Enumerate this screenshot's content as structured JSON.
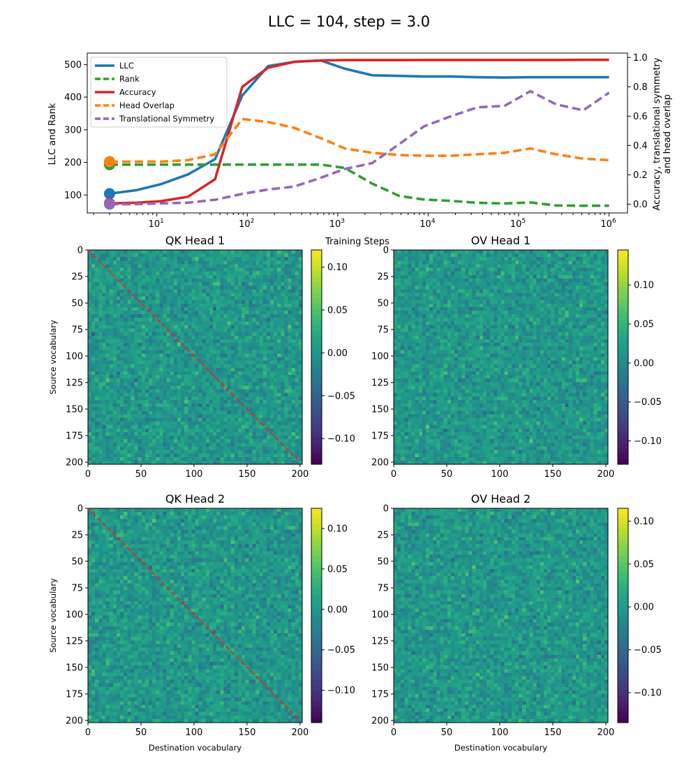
{
  "figure": {
    "suptitle": "LLC = 104, step = 3.0"
  },
  "chart_data": [
    {
      "type": "line",
      "xscale": "log",
      "xlabel": "Training Steps",
      "ylabel_left": "LLC and Rank",
      "ylabel_right_line1": "Accuracy, translational symmetry",
      "ylabel_right_line2": "and head overlap",
      "xlim": [
        1.7,
        1600000
      ],
      "ylim_left": [
        45,
        535
      ],
      "ylim_right": [
        -0.06,
        1.03
      ],
      "xticks": [
        {
          "value": 10,
          "base": "10",
          "exp": "1"
        },
        {
          "value": 100,
          "base": "10",
          "exp": "2"
        },
        {
          "value": 1000,
          "base": "10",
          "exp": "3"
        },
        {
          "value": 10000,
          "base": "10",
          "exp": "4"
        },
        {
          "value": 100000,
          "base": "10",
          "exp": "5"
        },
        {
          "value": 1000000,
          "base": "10",
          "exp": "6"
        }
      ],
      "yticks_left": [
        100,
        200,
        300,
        400,
        500
      ],
      "yticks_right": [
        0.0,
        0.2,
        0.4,
        0.6,
        0.8,
        1.0
      ],
      "legend_position": "upper-left",
      "x": [
        3,
        6,
        11,
        22,
        44,
        88,
        170,
        330,
        650,
        1200,
        2400,
        4800,
        9000,
        18000,
        35000,
        70000,
        135000,
        260000,
        520000,
        1000000
      ],
      "series": [
        {
          "name": "LLC",
          "axis": "left",
          "color": "#1f77b4",
          "dash": "solid",
          "values": [
            104,
            115,
            133,
            163,
            210,
            405,
            495,
            508,
            512,
            487,
            467,
            465,
            463,
            463,
            461,
            460,
            461,
            461,
            461,
            461
          ]
        },
        {
          "name": "Rank",
          "axis": "left",
          "color": "#2ca02c",
          "dash": "dashed",
          "values": [
            193,
            193,
            193,
            193,
            193,
            193,
            193,
            193,
            193,
            183,
            135,
            97,
            86,
            82,
            76,
            74,
            77,
            68,
            67,
            67
          ]
        },
        {
          "name": "Accuracy",
          "axis": "right",
          "color": "#d62728",
          "dash": "solid",
          "values": [
            0.005,
            0.01,
            0.02,
            0.05,
            0.17,
            0.8,
            0.93,
            0.97,
            0.98,
            0.982,
            0.982,
            0.982,
            0.983,
            0.983,
            0.983,
            0.983,
            0.983,
            0.983,
            0.984,
            0.984
          ]
        },
        {
          "name": "Head Overlap",
          "axis": "right",
          "color": "#ff7f0e",
          "dash": "dashed",
          "values": [
            0.29,
            0.29,
            0.29,
            0.3,
            0.34,
            0.58,
            0.56,
            0.52,
            0.45,
            0.38,
            0.35,
            0.335,
            0.33,
            0.33,
            0.34,
            0.35,
            0.38,
            0.34,
            0.31,
            0.3
          ]
        },
        {
          "name": "Translational Symmetry",
          "axis": "right",
          "color": "#9467bd",
          "dash": "dashed",
          "values": [
            0.0,
            0.0,
            0.005,
            0.01,
            0.03,
            0.07,
            0.1,
            0.12,
            0.18,
            0.24,
            0.28,
            0.41,
            0.53,
            0.6,
            0.66,
            0.67,
            0.77,
            0.68,
            0.64,
            0.76
          ]
        }
      ],
      "start_markers": [
        "LLC",
        "Rank",
        "Accuracy",
        "Head Overlap",
        "Translational Symmetry"
      ]
    },
    {
      "type": "heatmap",
      "title": "QK Head 1",
      "colormap": "viridis",
      "xlabel": "",
      "ylabel": "Source vocabulary",
      "ticks": [
        "0",
        "50",
        "100",
        "150",
        "200"
      ],
      "yticks": [
        "0",
        "25",
        "50",
        "75",
        "100",
        "125",
        "150",
        "175",
        "200"
      ],
      "vmin": -0.13,
      "vmax": 0.12,
      "colorbar_ticks": [
        {
          "value": 0.1,
          "label": "0.10"
        },
        {
          "value": 0.05,
          "label": "0.05"
        },
        {
          "value": 0.0,
          "label": "0.00"
        },
        {
          "value": -0.05,
          "label": "−0.05"
        },
        {
          "value": -0.1,
          "label": "−0.10"
        }
      ],
      "diagonal_overlay": true
    },
    {
      "type": "heatmap",
      "title": "OV Head 1",
      "colormap": "viridis",
      "xlabel": "",
      "ylabel": "",
      "ticks": [
        "0",
        "50",
        "100",
        "150",
        "200"
      ],
      "yticks": [
        "0",
        "25",
        "50",
        "75",
        "100",
        "125",
        "150",
        "175",
        "200"
      ],
      "vmin": -0.13,
      "vmax": 0.145,
      "colorbar_ticks": [
        {
          "value": 0.1,
          "label": "0.10"
        },
        {
          "value": 0.05,
          "label": "0.05"
        },
        {
          "value": 0.0,
          "label": "0.00"
        },
        {
          "value": -0.05,
          "label": "−0.05"
        },
        {
          "value": -0.1,
          "label": "−0.10"
        }
      ],
      "diagonal_overlay": false
    },
    {
      "type": "heatmap",
      "title": "QK Head 2",
      "colormap": "viridis",
      "xlabel": "Destination vocabulary",
      "ylabel": "Source vocabulary",
      "ticks": [
        "0",
        "50",
        "100",
        "150",
        "200"
      ],
      "yticks": [
        "0",
        "25",
        "50",
        "75",
        "100",
        "125",
        "150",
        "175",
        "200"
      ],
      "vmin": -0.14,
      "vmax": 0.125,
      "colorbar_ticks": [
        {
          "value": 0.1,
          "label": "0.10"
        },
        {
          "value": 0.05,
          "label": "0.05"
        },
        {
          "value": 0.0,
          "label": "0.00"
        },
        {
          "value": -0.05,
          "label": "−0.05"
        },
        {
          "value": -0.1,
          "label": "−0.10"
        }
      ],
      "diagonal_overlay": true
    },
    {
      "type": "heatmap",
      "title": "OV Head 2",
      "colormap": "viridis",
      "xlabel": "Destination vocabulary",
      "ylabel": "",
      "ticks": [
        "0",
        "50",
        "100",
        "150",
        "200"
      ],
      "yticks": [
        "0",
        "25",
        "50",
        "75",
        "100",
        "125",
        "150",
        "175",
        "200"
      ],
      "vmin": -0.135,
      "vmax": 0.115,
      "colorbar_ticks": [
        {
          "value": 0.1,
          "label": "0.10"
        },
        {
          "value": 0.05,
          "label": "0.05"
        },
        {
          "value": 0.0,
          "label": "0.00"
        },
        {
          "value": -0.05,
          "label": "−0.05"
        },
        {
          "value": -0.1,
          "label": "−0.10"
        }
      ],
      "diagonal_overlay": false
    }
  ]
}
